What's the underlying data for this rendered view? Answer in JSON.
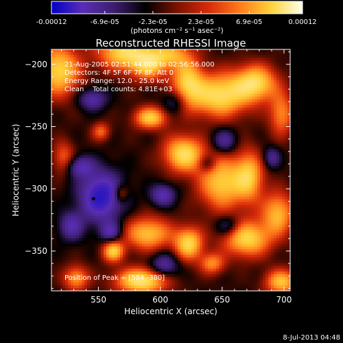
{
  "colorbar": {
    "tick_labels": [
      "-0.00012",
      "-6.9e-05",
      "-2.3e-05",
      "2.3e-05",
      "6.9e-05",
      "0.00012"
    ],
    "tick_values": [
      -0.00012,
      -6.9e-05,
      -2.3e-05,
      2.3e-05,
      6.9e-05,
      0.00012
    ],
    "range": [
      -0.00012,
      0.00012
    ],
    "unit_label": "(photons cm⁻² s⁻¹ asec⁻²)",
    "colors": [
      "#0000c8",
      "#5a2db4",
      "#3c1e6e",
      "#000000",
      "#7a1200",
      "#d62a0a",
      "#ff7a1a",
      "#ffd23a",
      "#ffffee"
    ]
  },
  "plot": {
    "title": "Reconstructed RHESSI Image",
    "info_lines": [
      "21-Aug-2005 02:51:44.000 to 02:56:56.000",
      "Detectors: 4F 5F 6F 7F 8F, Att 0",
      "Energy Range: 12.0 - 25.0 keV",
      "Clean    Total counts: 4.81E+03"
    ],
    "peak_text": "Position of Peak = [584,-380]",
    "footer_date": "8-Jul-2013 04:48"
  },
  "chart_data": {
    "type": "heatmap",
    "title": "Reconstructed RHESSI Image",
    "xlabel": "Heliocentric X (arcsec)",
    "ylabel": "Heliocentric Y (arcsec)",
    "xlim": [
      512,
      705
    ],
    "ylim": [
      -382,
      -188
    ],
    "x_ticks": [
      550,
      600,
      650,
      700
    ],
    "y_ticks": [
      -200,
      -250,
      -300,
      -350
    ],
    "x_tick_labels": [
      "550",
      "600",
      "650",
      "700"
    ],
    "y_tick_labels": [
      "-200",
      "-250",
      "-300",
      "-350"
    ],
    "peak": {
      "x": 584,
      "y": -380
    },
    "min_marker": {
      "x": 546,
      "y": -308
    },
    "blobs": [
      {
        "x": 518,
        "y": -205,
        "sx": 12,
        "sy": 14,
        "a": 0.85
      },
      {
        "x": 570,
        "y": -190,
        "sx": 14,
        "sy": 10,
        "a": 0.85
      },
      {
        "x": 590,
        "y": -200,
        "sx": 10,
        "sy": 9,
        "a": 0.7
      },
      {
        "x": 608,
        "y": -192,
        "sx": 12,
        "sy": 8,
        "a": 0.6
      },
      {
        "x": 622,
        "y": -215,
        "sx": 9,
        "sy": 13,
        "a": 0.75
      },
      {
        "x": 648,
        "y": -225,
        "sx": 16,
        "sy": 12,
        "a": 0.9
      },
      {
        "x": 677,
        "y": -215,
        "sx": 12,
        "sy": 10,
        "a": 0.85
      },
      {
        "x": 698,
        "y": -240,
        "sx": 7,
        "sy": 12,
        "a": 0.55
      },
      {
        "x": 592,
        "y": -243,
        "sx": 9,
        "sy": 6,
        "a": 0.8
      },
      {
        "x": 552,
        "y": -254,
        "sx": 5,
        "sy": 5,
        "a": 0.45
      },
      {
        "x": 619,
        "y": -272,
        "sx": 11,
        "sy": 10,
        "a": 0.9
      },
      {
        "x": 650,
        "y": -295,
        "sx": 13,
        "sy": 15,
        "a": 0.8
      },
      {
        "x": 672,
        "y": -290,
        "sx": 8,
        "sy": 14,
        "a": 0.7
      },
      {
        "x": 522,
        "y": -275,
        "sx": 6,
        "sy": 9,
        "a": 0.45
      },
      {
        "x": 568,
        "y": -304,
        "sx": 4,
        "sy": 5,
        "a": 0.4
      },
      {
        "x": 562,
        "y": -350,
        "sx": 6,
        "sy": 6,
        "a": 0.8
      },
      {
        "x": 590,
        "y": -336,
        "sx": 13,
        "sy": 9,
        "a": 0.75
      },
      {
        "x": 585,
        "y": -374,
        "sx": 14,
        "sy": 7,
        "a": 1.0
      },
      {
        "x": 623,
        "y": -344,
        "sx": 8,
        "sy": 9,
        "a": 0.85
      },
      {
        "x": 670,
        "y": -340,
        "sx": 13,
        "sy": 10,
        "a": 0.85
      },
      {
        "x": 695,
        "y": -320,
        "sx": 9,
        "sy": 12,
        "a": 0.7
      },
      {
        "x": 642,
        "y": -360,
        "sx": 7,
        "sy": 6,
        "a": 0.55
      },
      {
        "x": 698,
        "y": -375,
        "sx": 9,
        "sy": 7,
        "a": 0.75
      },
      {
        "x": 532,
        "y": -372,
        "sx": 7,
        "sy": 7,
        "a": 0.6
      },
      {
        "x": 545,
        "y": -228,
        "sx": 8,
        "sy": 6,
        "a": -0.5
      },
      {
        "x": 612,
        "y": -230,
        "sx": 7,
        "sy": 7,
        "a": -0.35
      },
      {
        "x": 552,
        "y": -306,
        "sx": 12,
        "sy": 14,
        "a": -0.85
      },
      {
        "x": 535,
        "y": -282,
        "sx": 8,
        "sy": 6,
        "a": -0.5
      },
      {
        "x": 652,
        "y": -262,
        "sx": 7,
        "sy": 7,
        "a": -0.45
      },
      {
        "x": 602,
        "y": -305,
        "sx": 7,
        "sy": 6,
        "a": -0.55
      },
      {
        "x": 603,
        "y": -362,
        "sx": 8,
        "sy": 7,
        "a": -0.5
      },
      {
        "x": 655,
        "y": -330,
        "sx": 7,
        "sy": 6,
        "a": -0.4
      },
      {
        "x": 690,
        "y": -275,
        "sx": 5,
        "sy": 6,
        "a": -0.4
      },
      {
        "x": 528,
        "y": -330,
        "sx": 7,
        "sy": 8,
        "a": -0.5
      },
      {
        "x": 560,
        "y": -335,
        "sx": 6,
        "sy": 6,
        "a": -0.5
      },
      {
        "x": 638,
        "y": -280,
        "sx": 5,
        "sy": 5,
        "a": -0.35
      }
    ]
  }
}
